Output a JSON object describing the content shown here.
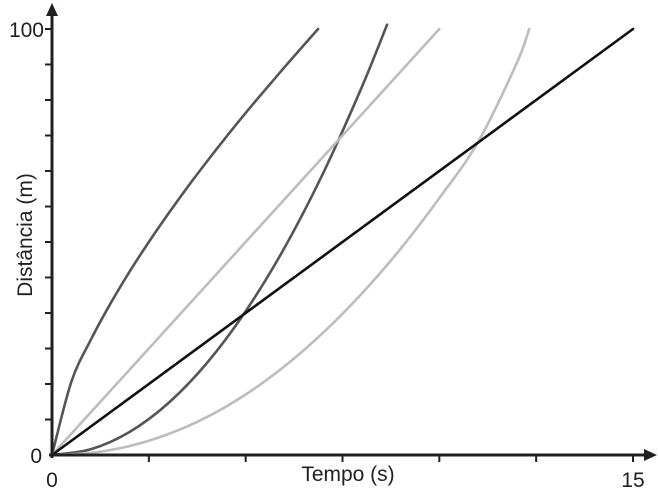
{
  "chart_data": {
    "type": "line",
    "title": "",
    "xlabel": "Tempo (s)",
    "ylabel": "Distância (m)",
    "xlim": [
      0,
      15
    ],
    "ylim": [
      0,
      100
    ],
    "x_tick_labels": [
      {
        "value": 0,
        "label": "0"
      },
      {
        "value": 15,
        "label": "15"
      }
    ],
    "y_tick_labels": [
      {
        "value": 0,
        "label": "0"
      },
      {
        "value": 100,
        "label": "100"
      }
    ],
    "x_ticks": [
      0,
      2.5,
      5,
      7.5,
      10,
      12.5,
      15
    ],
    "y_ticks": [
      0,
      8.33,
      16.67,
      25,
      33.33,
      41.67,
      50,
      58.33,
      66.67,
      75,
      83.33,
      91.67,
      100
    ],
    "grid": false,
    "legend": null,
    "series": [
      {
        "name": "dark-gray-concave",
        "color": "#555555",
        "x": [
          0,
          0.5,
          1,
          1.5,
          2,
          2.5,
          3,
          3.5,
          4,
          4.5,
          5,
          5.5,
          6,
          6.5,
          6.87
        ],
        "y": [
          0,
          17.2,
          27.0,
          35.4,
          43.0,
          50.0,
          56.6,
          62.9,
          68.9,
          74.7,
          80.3,
          85.7,
          91.0,
          96.2,
          100
        ]
      },
      {
        "name": "dark-gray-convex",
        "color": "#555555",
        "x": [
          0,
          1,
          2,
          3,
          4,
          5,
          6,
          7,
          8,
          8.65
        ],
        "y": [
          0,
          1.35,
          5.4,
          12.15,
          21.6,
          33.75,
          48.6,
          66.15,
          86.4,
          101
        ]
      },
      {
        "name": "light-gray-linear",
        "color": "#bdbdbd",
        "x": [
          0,
          10
        ],
        "y": [
          0,
          100
        ]
      },
      {
        "name": "light-gray-convex",
        "color": "#bdbdbd",
        "x": [
          0,
          1,
          2,
          3,
          4,
          5,
          6,
          7,
          8,
          9,
          10,
          11,
          12,
          12.32
        ],
        "y": [
          0,
          0.5,
          2.1,
          4.9,
          8.9,
          14.2,
          20.8,
          28.7,
          37.9,
          48.4,
          60.3,
          73.5,
          92.0,
          100
        ]
      },
      {
        "name": "black-linear",
        "color": "#111111",
        "x": [
          0,
          15
        ],
        "y": [
          0,
          100
        ]
      }
    ]
  }
}
